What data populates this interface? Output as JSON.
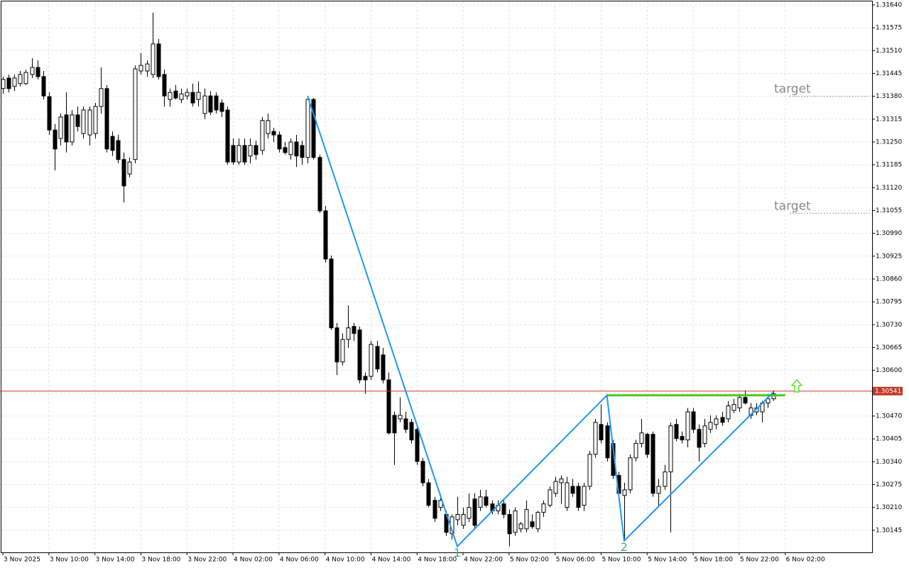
{
  "chart_data": {
    "type": "candlestick",
    "open": [
      1.31402,
      1.31432,
      1.31408,
      1.31416,
      1.31416,
      1.31442,
      1.31462,
      1.31436,
      1.31379,
      1.31284,
      1.3126,
      1.31327,
      1.3125,
      1.31327,
      1.31274,
      1.3127,
      1.31274,
      1.31351,
      1.31402,
      1.31266,
      1.31254,
      1.312,
      1.31159,
      1.312,
      1.31452,
      1.31452,
      1.31442,
      1.31529,
      1.31442,
      1.31371,
      1.31395,
      1.31371,
      1.31381,
      1.31391,
      1.31371,
      1.31331,
      1.31381,
      1.31381,
      1.31361,
      1.31341,
      1.3124,
      1.31193,
      1.3124,
      1.3121,
      1.3124,
      1.31226,
      1.31274,
      1.3128,
      1.3127,
      1.31234,
      1.31214,
      1.3125,
      1.3124,
      1.31206,
      1.31371,
      1.31206,
      1.31054,
      1.30917,
      1.30721,
      1.30624,
      1.30688,
      1.30725,
      1.30715,
      1.30583,
      1.30583,
      1.30668,
      1.30644,
      1.30573,
      1.30472,
      1.30462,
      1.30462,
      1.30452,
      1.30432,
      1.30341,
      1.3028,
      1.3023,
      1.3021,
      1.3019,
      1.30135,
      1.30175,
      1.30159,
      1.30179,
      1.30234,
      1.3021,
      1.3024,
      1.3022,
      1.302,
      1.3022,
      1.3019,
      1.30139,
      1.30149,
      1.30149,
      1.30169,
      1.30149,
      1.30196,
      1.30216,
      1.3025,
      1.3028,
      1.3021,
      1.3027,
      1.3027,
      1.30216,
      1.3027,
      1.30361,
      1.30446,
      1.30442,
      1.30392,
      1.30301,
      1.30244,
      1.3026,
      1.30351,
      1.30392,
      1.30418,
      1.30418,
      1.3025,
      1.3027,
      1.30311,
      1.30446,
      1.30412,
      1.30402,
      1.30482,
      1.30432,
      1.30392,
      1.30432,
      1.30446,
      1.30466,
      1.30462,
      1.30486,
      1.30493,
      1.30523,
      1.30472,
      1.30482,
      1.30482,
      1.30507,
      1.30519
    ],
    "high": [
      1.31436,
      1.31442,
      1.31442,
      1.31452,
      1.31456,
      1.31488,
      1.31482,
      1.31452,
      1.31391,
      1.31301,
      1.31331,
      1.31391,
      1.31341,
      1.31351,
      1.31351,
      1.31351,
      1.31361,
      1.31462,
      1.31412,
      1.3128,
      1.3127,
      1.3122,
      1.31206,
      1.31468,
      1.31503,
      1.31482,
      1.31618,
      1.31543,
      1.31456,
      1.31402,
      1.31412,
      1.31402,
      1.31402,
      1.31416,
      1.31422,
      1.31402,
      1.31395,
      1.31391,
      1.31371,
      1.31351,
      1.3126,
      1.3126,
      1.3126,
      1.3126,
      1.31254,
      1.31321,
      1.31331,
      1.3129,
      1.3128,
      1.3125,
      1.3126,
      1.3127,
      1.31254,
      1.31381,
      1.31375,
      1.31214,
      1.31068,
      1.30927,
      1.30735,
      1.30705,
      1.30785,
      1.30735,
      1.30725,
      1.30594,
      1.30684,
      1.30684,
      1.30664,
      1.30594,
      1.30482,
      1.30523,
      1.30482,
      1.30462,
      1.30442,
      1.30351,
      1.30291,
      1.3024,
      1.3024,
      1.302,
      1.3019,
      1.3024,
      1.3021,
      1.3025,
      1.3025,
      1.3026,
      1.3026,
      1.3023,
      1.3023,
      1.3023,
      1.30204,
      1.3021,
      1.30169,
      1.3023,
      1.3019,
      1.302,
      1.3023,
      1.3027,
      1.30297,
      1.30301,
      1.30297,
      1.30291,
      1.3028,
      1.3028,
      1.30371,
      1.30462,
      1.30503,
      1.30452,
      1.30402,
      1.30311,
      1.3028,
      1.30361,
      1.30402,
      1.30462,
      1.30422,
      1.30426,
      1.30291,
      1.30331,
      1.30452,
      1.30462,
      1.30426,
      1.30493,
      1.30493,
      1.30446,
      1.30462,
      1.30472,
      1.30472,
      1.30482,
      1.30513,
      1.30519,
      1.30533,
      1.30543,
      1.30507,
      1.30507,
      1.30513,
      1.30533,
      1.30543
    ],
    "low": [
      1.31387,
      1.31391,
      1.31395,
      1.31408,
      1.31412,
      1.31432,
      1.31428,
      1.31371,
      1.3127,
      1.31169,
      1.3124,
      1.3122,
      1.3124,
      1.3128,
      1.3126,
      1.3124,
      1.3126,
      1.31331,
      1.3122,
      1.3121,
      1.31189,
      1.31078,
      1.31149,
      1.31189,
      1.31442,
      1.31436,
      1.31432,
      1.31428,
      1.31351,
      1.31351,
      1.31371,
      1.31361,
      1.31371,
      1.31351,
      1.31351,
      1.31315,
      1.31327,
      1.31331,
      1.31321,
      1.31185,
      1.31185,
      1.31185,
      1.31185,
      1.31189,
      1.312,
      1.31214,
      1.3126,
      1.3125,
      1.3122,
      1.31214,
      1.312,
      1.31179,
      1.31185,
      1.31189,
      1.312,
      1.31048,
      1.30907,
      1.30715,
      1.30587,
      1.30614,
      1.30664,
      1.30684,
      1.30563,
      1.30533,
      1.30573,
      1.30594,
      1.30563,
      1.30418,
      1.30331,
      1.30452,
      1.30422,
      1.30392,
      1.30331,
      1.3027,
      1.3021,
      1.30169,
      1.302,
      1.30129,
      1.30119,
      1.30159,
      1.30149,
      1.30169,
      1.30149,
      1.302,
      1.3021,
      1.3019,
      1.3019,
      1.30179,
      1.30099,
      1.30129,
      1.30139,
      1.30139,
      1.30149,
      1.30139,
      1.30183,
      1.3021,
      1.3024,
      1.3022,
      1.302,
      1.3024,
      1.302,
      1.302,
      1.3026,
      1.30351,
      1.30392,
      1.30341,
      1.30291,
      1.3024,
      1.30119,
      1.3025,
      1.30341,
      1.30381,
      1.30351,
      1.3024,
      1.3021,
      1.3026,
      1.30139,
      1.30398,
      1.30392,
      1.30381,
      1.30422,
      1.30341,
      1.30381,
      1.30422,
      1.30432,
      1.30442,
      1.30452,
      1.30478,
      1.30482,
      1.30503,
      1.30462,
      1.30472,
      1.30452,
      1.30493,
      1.30513
    ],
    "close": [
      1.31428,
      1.31402,
      1.31432,
      1.31442,
      1.31448,
      1.31462,
      1.31436,
      1.31381,
      1.31284,
      1.3123,
      1.31321,
      1.3125,
      1.31327,
      1.31294,
      1.31341,
      1.31341,
      1.31351,
      1.31402,
      1.3123,
      1.31226,
      1.312,
      1.31125,
      1.31193,
      1.31458,
      1.31468,
      1.31472,
      1.31529,
      1.31436,
      1.31381,
      1.31391,
      1.31375,
      1.31387,
      1.31391,
      1.31361,
      1.31391,
      1.31381,
      1.31335,
      1.31341,
      1.31337,
      1.31193,
      1.31193,
      1.3124,
      1.31193,
      1.3124,
      1.31214,
      1.31311,
      1.31311,
      1.3127,
      1.3123,
      1.3122,
      1.3125,
      1.3121,
      1.31206,
      1.31371,
      1.31206,
      1.31054,
      1.30917,
      1.30721,
      1.30624,
      1.30688,
      1.30721,
      1.30705,
      1.30573,
      1.30573,
      1.30674,
      1.30604,
      1.30573,
      1.30422,
      1.30422,
      1.30472,
      1.30432,
      1.30402,
      1.30341,
      1.3028,
      1.30216,
      1.30179,
      1.3023,
      1.30139,
      1.30183,
      1.3019,
      1.3019,
      1.3021,
      1.30159,
      1.3024,
      1.30216,
      1.302,
      1.30216,
      1.3019,
      1.30135,
      1.302,
      1.30163,
      1.30204,
      1.30155,
      1.30196,
      1.3022,
      1.3026,
      1.30284,
      1.30291,
      1.3028,
      1.3025,
      1.3021,
      1.3027,
      1.30361,
      1.30452,
      1.30402,
      1.30351,
      1.30301,
      1.3025,
      1.3026,
      1.30351,
      1.30392,
      1.30422,
      1.30361,
      1.3025,
      1.3027,
      1.30311,
      1.30442,
      1.30406,
      1.30402,
      1.30482,
      1.30432,
      1.30381,
      1.30442,
      1.30452,
      1.30462,
      1.30452,
      1.30499,
      1.30503,
      1.30523,
      1.30507,
      1.30493,
      1.30493,
      1.30507,
      1.30519,
      1.30533
    ],
    "xlim": [
      -0.5,
      151.1
    ],
    "xticks": [
      {
        "value": 0,
        "label": "3 Nov 2025"
      },
      {
        "value": 8,
        "label": "3 Nov 10:00"
      },
      {
        "value": 16,
        "label": "3 Nov 14:00"
      },
      {
        "value": 24,
        "label": "3 Nov 18:00"
      },
      {
        "value": 32,
        "label": "3 Nov 22:00"
      },
      {
        "value": 40,
        "label": "4 Nov 02:00"
      },
      {
        "value": 48,
        "label": "4 Nov 06:00"
      },
      {
        "value": 56,
        "label": "4 Nov 10:00"
      },
      {
        "value": 64,
        "label": "4 Nov 14:00"
      },
      {
        "value": 72,
        "label": "4 Nov 18:00"
      },
      {
        "value": 80,
        "label": "4 Nov 22:00"
      },
      {
        "value": 88,
        "label": "5 Nov 02:00"
      },
      {
        "value": 96,
        "label": "5 Nov 06:00"
      },
      {
        "value": 104,
        "label": "5 Nov 10:00"
      },
      {
        "value": 112,
        "label": "5 Nov 14:00"
      },
      {
        "value": 120,
        "label": "5 Nov 18:00"
      },
      {
        "value": 128,
        "label": "5 Nov 22:00"
      },
      {
        "value": 136,
        "label": "6 Nov 02:00"
      }
    ],
    "ylim": [
      1.30082,
      1.3165
    ],
    "yticks": [
      1.30145,
      {
        "value": 1.3021,
        "label": "1.30210"
      },
      1.30275,
      {
        "value": 1.3034,
        "label": "1.30340"
      },
      1.30405,
      {
        "value": 1.3047,
        "label": "1.30470"
      },
      1.30535,
      {
        "value": 1.306,
        "label": "1.30600"
      },
      1.30665,
      {
        "value": 1.3073,
        "label": "1.30730"
      },
      1.30795,
      {
        "value": 1.3086,
        "label": "1.30860"
      },
      1.30925,
      {
        "value": 1.3099,
        "label": "1.30990"
      },
      1.31055,
      {
        "value": 1.3112,
        "label": "1.31120"
      },
      1.31185,
      {
        "value": 1.3125,
        "label": "1.31250"
      },
      1.31315,
      {
        "value": 1.3138,
        "label": "1.31380"
      },
      1.31445,
      {
        "value": 1.3151,
        "label": "1.31510"
      },
      1.31575,
      {
        "value": 1.3164,
        "label": "1.31640"
      }
    ],
    "grid": true,
    "up_color": "#ffffff",
    "down_color": "#000000",
    "current_price": {
      "value": 1.30541,
      "label": "1.30541",
      "color": "#c0392b"
    },
    "pattern": {
      "color": "#2196f3",
      "points": [
        [
          53,
          1.31379
        ],
        [
          79,
          1.30099
        ],
        [
          105,
          1.30529
        ],
        [
          108,
          1.30115
        ],
        [
          134,
          1.30539
        ]
      ]
    },
    "pivot_labels": [
      {
        "label": "1",
        "point": 1
      },
      {
        "label": "2",
        "point": 3
      }
    ],
    "pivot_color": "#3cb371",
    "resistance": {
      "value": 1.30529,
      "from": 105,
      "to": 136,
      "color": "#44cc22"
    },
    "signal_arrow": {
      "x": 138,
      "value": 1.30555,
      "color": "#66dd33"
    },
    "targets": [
      {
        "label": "target",
        "value": 1.3138
      },
      {
        "label": "target",
        "value": 1.31047
      }
    ]
  }
}
